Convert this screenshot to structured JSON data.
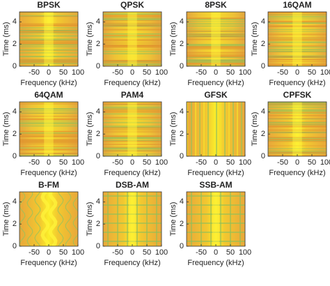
{
  "chart_data": [
    {
      "type": "spectrogram",
      "title": "BPSK",
      "xlabel": "Frequency (kHz)",
      "ylabel": "Time (ms)",
      "xlim": [
        -100,
        100
      ],
      "ylim": [
        0,
        4.9
      ],
      "xticks": [
        -50,
        0,
        50,
        100
      ],
      "yticks": [
        0,
        2,
        4
      ]
    },
    {
      "type": "spectrogram",
      "title": "QPSK",
      "xlabel": "Frequency (kHz)",
      "ylabel": "Time (ms)",
      "xlim": [
        -100,
        100
      ],
      "ylim": [
        0,
        4.9
      ],
      "xticks": [
        -50,
        0,
        50,
        100
      ],
      "yticks": [
        0,
        2,
        4
      ]
    },
    {
      "type": "spectrogram",
      "title": "8PSK",
      "xlabel": "Frequency (kHz)",
      "ylabel": "Time (ms)",
      "xlim": [
        -100,
        100
      ],
      "ylim": [
        0,
        4.9
      ],
      "xticks": [
        -50,
        0,
        50,
        100
      ],
      "yticks": [
        0,
        2,
        4
      ]
    },
    {
      "type": "spectrogram",
      "title": "16QAM",
      "xlabel": "Frequency (kHz)",
      "ylabel": "Time (ms)",
      "xlim": [
        -100,
        100
      ],
      "ylim": [
        0,
        4.9
      ],
      "xticks": [
        -50,
        0,
        50,
        100
      ],
      "yticks": [
        0,
        2,
        4
      ]
    },
    {
      "type": "spectrogram",
      "title": "64QAM",
      "xlabel": "Frequency (kHz)",
      "ylabel": "Time (ms)",
      "xlim": [
        -100,
        100
      ],
      "ylim": [
        0,
        4.9
      ],
      "xticks": [
        -50,
        0,
        50,
        100
      ],
      "yticks": [
        0,
        2,
        4
      ]
    },
    {
      "type": "spectrogram",
      "title": "PAM4",
      "xlabel": "Frequency (kHz)",
      "ylabel": "Time (ms)",
      "xlim": [
        -100,
        100
      ],
      "ylim": [
        0,
        4.9
      ],
      "xticks": [
        -50,
        0,
        50,
        100
      ],
      "yticks": [
        0,
        2,
        4
      ]
    },
    {
      "type": "spectrogram",
      "title": "GFSK",
      "xlabel": "Frequency (kHz)",
      "ylabel": "Time (ms)",
      "xlim": [
        -100,
        100
      ],
      "ylim": [
        0,
        4.9
      ],
      "xticks": [
        -50,
        0,
        50,
        100
      ],
      "yticks": [
        0,
        2,
        4
      ]
    },
    {
      "type": "spectrogram",
      "title": "CPFSK",
      "xlabel": "Frequency (kHz)",
      "ylabel": "Time (ms)",
      "xlim": [
        -100,
        100
      ],
      "ylim": [
        0,
        4.9
      ],
      "xticks": [
        -50,
        0,
        50,
        100
      ],
      "yticks": [
        0,
        2,
        4
      ]
    },
    {
      "type": "spectrogram",
      "title": "B-FM",
      "xlabel": "Frequency (kHz)",
      "ylabel": "Time (ms)",
      "xlim": [
        -100,
        100
      ],
      "ylim": [
        0,
        4.9
      ],
      "xticks": [
        -50,
        0,
        50,
        100
      ],
      "yticks": [
        0,
        2,
        4
      ]
    },
    {
      "type": "spectrogram",
      "title": "DSB-AM",
      "xlabel": "Frequency (kHz)",
      "ylabel": "Time (ms)",
      "xlim": [
        -100,
        100
      ],
      "ylim": [
        0,
        4.9
      ],
      "xticks": [
        -50,
        0,
        50,
        100
      ],
      "yticks": [
        0,
        2,
        4
      ]
    },
    {
      "type": "spectrogram",
      "title": "SSB-AM",
      "xlabel": "Frequency (kHz)",
      "ylabel": "Time (ms)",
      "xlim": [
        -100,
        100
      ],
      "ylim": [
        0,
        4.9
      ],
      "xticks": [
        -50,
        0,
        50,
        100
      ],
      "yticks": [
        0,
        2,
        4
      ]
    }
  ]
}
